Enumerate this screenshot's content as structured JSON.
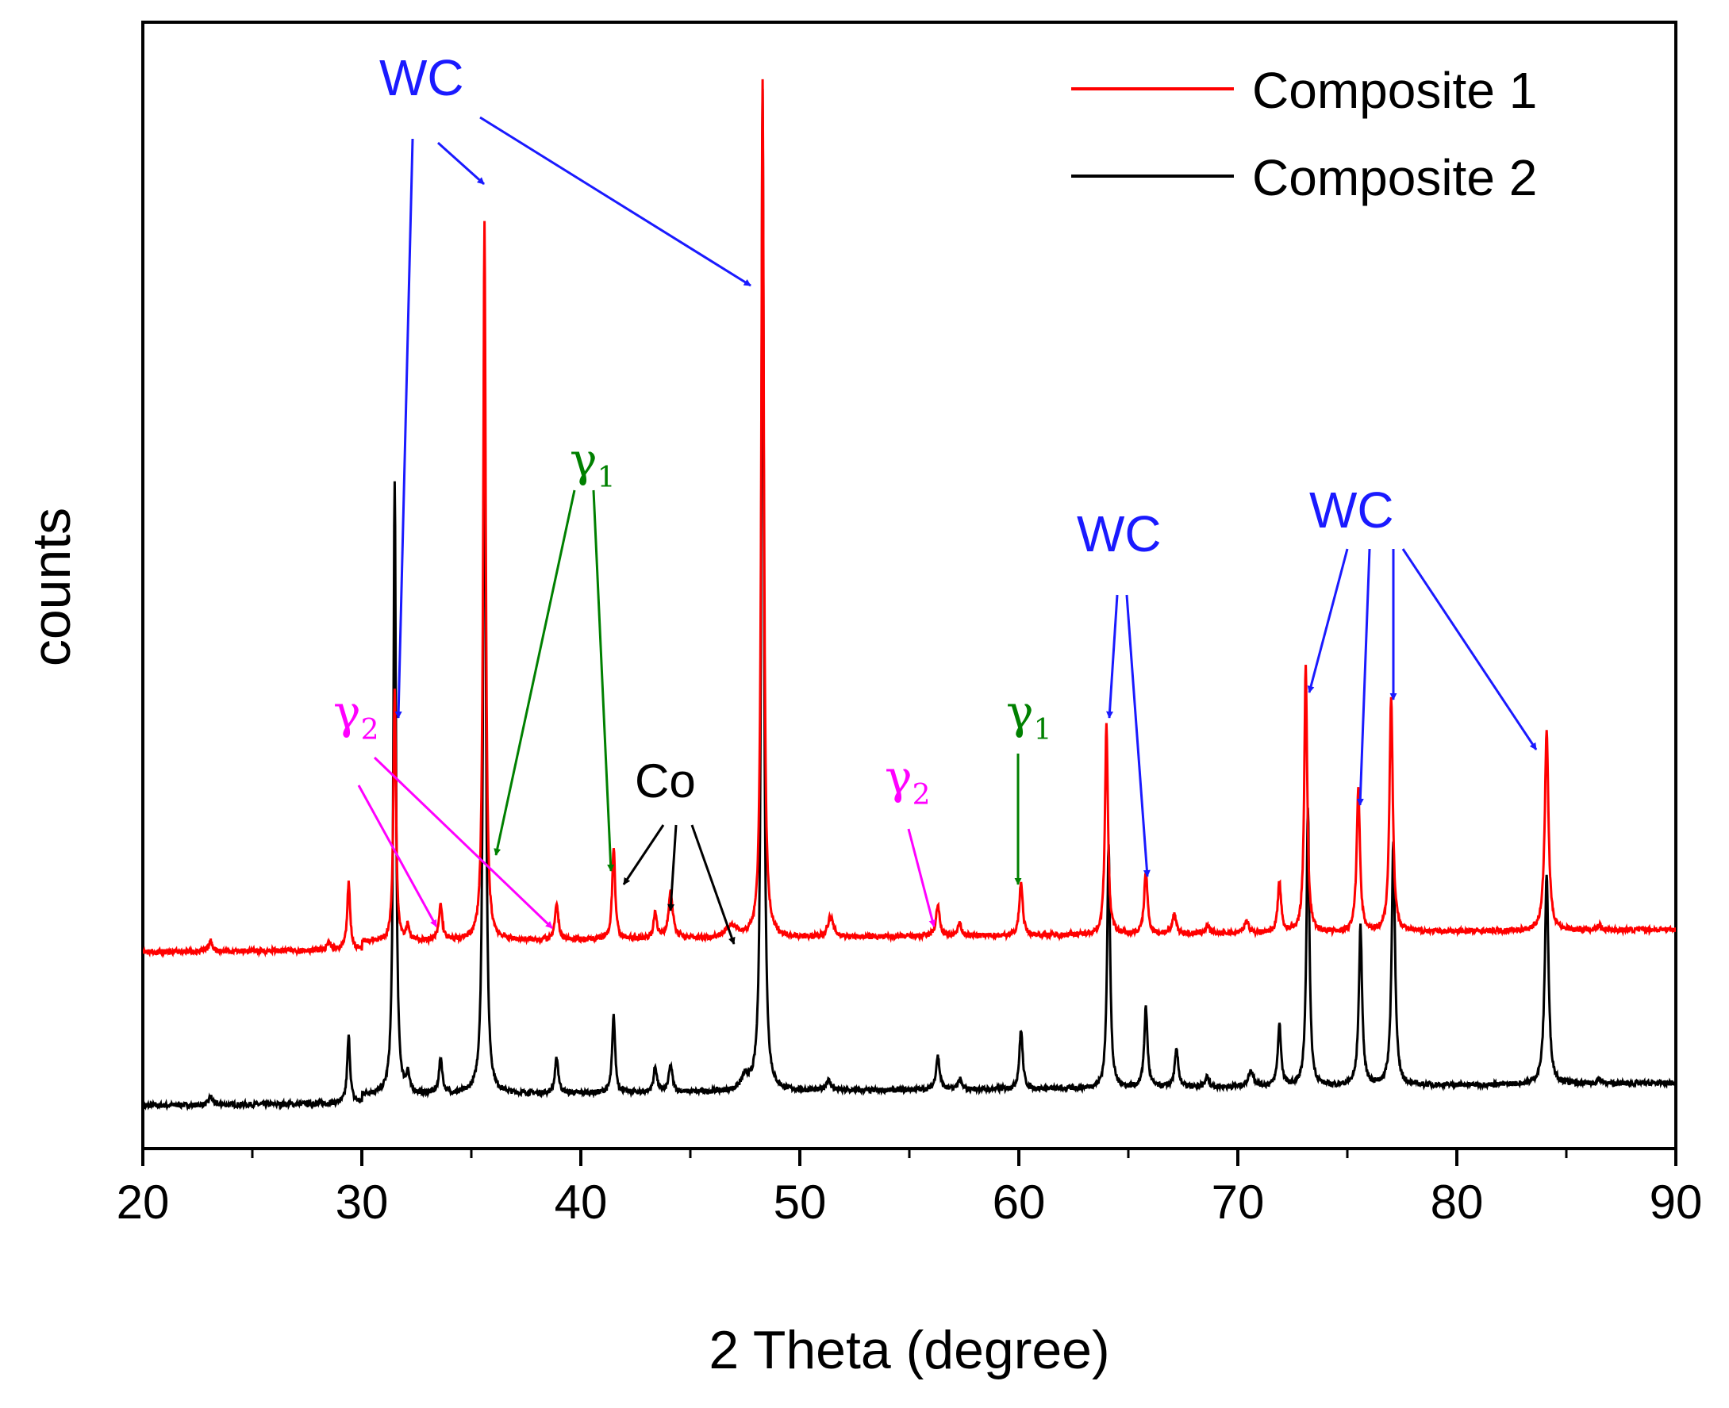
{
  "chart_data": {
    "type": "line",
    "title": "",
    "xlabel": "2 Theta (degree)",
    "ylabel": "counts",
    "xlim": [
      20,
      90
    ],
    "xticks": [
      20,
      30,
      40,
      50,
      60,
      70,
      80,
      90
    ],
    "y_tick_labels_shown": false,
    "grid": false,
    "legend": {
      "placement": "top-right",
      "entries": [
        {
          "label": "Composite 1",
          "color": "#ff0000"
        },
        {
          "label": "Composite 2",
          "color": "#000000"
        }
      ]
    },
    "series": [
      {
        "name": "Composite 1",
        "color": "#ff0000",
        "baseline": 17,
        "peaks": [
          [
            23.1,
            1.0,
            0.1
          ],
          [
            28.5,
            0.8,
            0.08
          ],
          [
            29.4,
            6.5,
            0.08
          ],
          [
            31.5,
            24.5,
            0.07
          ],
          [
            32.1,
            1.5,
            0.08
          ],
          [
            33.6,
            3.5,
            0.09
          ],
          [
            35.6,
            70.0,
            0.07
          ],
          [
            38.9,
            3.5,
            0.09
          ],
          [
            41.5,
            9.0,
            0.08
          ],
          [
            43.4,
            2.5,
            0.09
          ],
          [
            44.1,
            4.5,
            0.12
          ],
          [
            46.9,
            1.2,
            0.3
          ],
          [
            48.3,
            84.0,
            0.07
          ],
          [
            51.4,
            2.0,
            0.15
          ],
          [
            56.3,
            3.0,
            0.1
          ],
          [
            57.3,
            1.2,
            0.1
          ],
          [
            60.1,
            5.3,
            0.09
          ],
          [
            64.0,
            20.5,
            0.08
          ],
          [
            65.8,
            6.2,
            0.09
          ],
          [
            67.1,
            2.0,
            0.1
          ],
          [
            68.6,
            0.8,
            0.1
          ],
          [
            70.4,
            1.2,
            0.12
          ],
          [
            71.9,
            5.0,
            0.09
          ],
          [
            73.1,
            26.0,
            0.08
          ],
          [
            75.5,
            14.0,
            0.09
          ],
          [
            77.0,
            23.0,
            0.09
          ],
          [
            84.1,
            19.5,
            0.1
          ],
          [
            86.5,
            0.5,
            0.1
          ]
        ]
      },
      {
        "name": "Composite 2",
        "color": "#000000",
        "baseline": 2,
        "peaks": [
          [
            23.1,
            0.8,
            0.1
          ],
          [
            29.4,
            6.5,
            0.08
          ],
          [
            31.5,
            60.0,
            0.07
          ],
          [
            32.1,
            1.8,
            0.08
          ],
          [
            33.6,
            3.5,
            0.09
          ],
          [
            35.6,
            79.0,
            0.07
          ],
          [
            38.9,
            3.5,
            0.09
          ],
          [
            41.5,
            7.5,
            0.08
          ],
          [
            43.4,
            2.5,
            0.09
          ],
          [
            44.1,
            2.6,
            0.1
          ],
          [
            47.5,
            1.2,
            0.2
          ],
          [
            48.3,
            98.0,
            0.07
          ],
          [
            51.3,
            1.0,
            0.15
          ],
          [
            56.3,
            3.3,
            0.1
          ],
          [
            57.3,
            1.0,
            0.1
          ],
          [
            60.1,
            5.8,
            0.09
          ],
          [
            64.1,
            24.0,
            0.08
          ],
          [
            65.8,
            7.8,
            0.09
          ],
          [
            67.2,
            3.6,
            0.1
          ],
          [
            68.6,
            1.0,
            0.1
          ],
          [
            70.6,
            1.5,
            0.15
          ],
          [
            71.9,
            6.0,
            0.09
          ],
          [
            73.2,
            27.0,
            0.08
          ],
          [
            75.6,
            15.5,
            0.09
          ],
          [
            77.1,
            24.0,
            0.09
          ],
          [
            84.1,
            20.5,
            0.1
          ],
          [
            86.5,
            0.5,
            0.1
          ]
        ]
      }
    ],
    "annotations": [
      {
        "text": "WC",
        "color": "#1a1aff"
      },
      {
        "text": "WC",
        "color": "#1a1aff"
      },
      {
        "text": "WC",
        "color": "#1a1aff"
      },
      {
        "text": "γ",
        "sub": "1",
        "color": "#008000"
      },
      {
        "text": "γ",
        "sub": "1",
        "color": "#008000"
      },
      {
        "text": "γ",
        "sub": "2",
        "color": "#ff00ff"
      },
      {
        "text": "γ",
        "sub": "2",
        "color": "#ff00ff"
      },
      {
        "text": "Co",
        "color": "#000000"
      }
    ]
  }
}
